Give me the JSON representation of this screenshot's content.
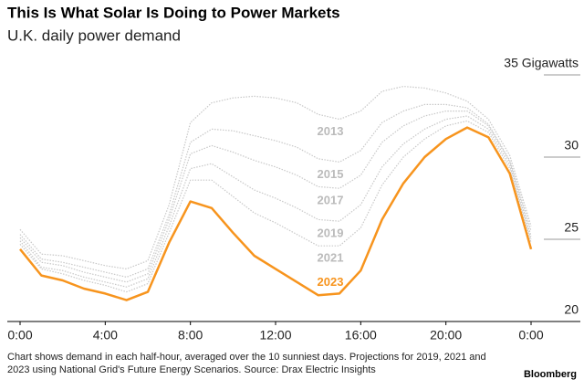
{
  "chart_data": {
    "type": "line",
    "title": "This Is What Solar Is Doing to Power Markets",
    "subtitle": "U.K. daily power demand",
    "note": "Chart shows demand in each half-hour, averaged over the 10 sunniest days. Projections for 2019, 2021 and 2023 using National Grid's Future Energy Scenarios. Source: Drax Electric Insights",
    "source": "Bloomberg",
    "x": [
      0,
      1,
      2,
      3,
      4,
      5,
      6,
      7,
      8,
      9,
      10,
      11,
      12,
      13,
      14,
      15,
      16,
      17,
      18,
      19,
      20,
      21,
      22,
      23,
      24
    ],
    "xlim": [
      0,
      24
    ],
    "xticks": [
      {
        "value": 0,
        "label": "0:00"
      },
      {
        "value": 4,
        "label": "4:00"
      },
      {
        "value": 8,
        "label": "8:00"
      },
      {
        "value": 12,
        "label": "12:00"
      },
      {
        "value": 16,
        "label": "16:00"
      },
      {
        "value": 20,
        "label": "20:00"
      },
      {
        "value": 24,
        "label": "0:00"
      }
    ],
    "ylim": [
      20,
      35
    ],
    "yticks": [
      20,
      25,
      30,
      {
        "value": 35,
        "label": "35 Gigawatts"
      }
    ],
    "series": [
      {
        "name": "2013",
        "color": "#c8c8c8",
        "values": [
          25.6,
          24.1,
          24.0,
          23.7,
          23.4,
          23.2,
          23.7,
          27.1,
          32.1,
          33.3,
          33.6,
          33.7,
          33.6,
          33.3,
          32.6,
          32.3,
          32.8,
          34.0,
          34.3,
          34.2,
          33.9,
          33.4,
          32.3,
          30.1,
          25.8
        ]
      },
      {
        "name": "2015",
        "color": "#c8c8c8",
        "values": [
          25.3,
          23.8,
          23.6,
          23.3,
          23.0,
          22.7,
          23.2,
          26.5,
          30.9,
          31.7,
          31.6,
          31.3,
          31.0,
          30.6,
          29.9,
          29.7,
          30.4,
          32.1,
          32.8,
          33.2,
          33.2,
          33.0,
          32.0,
          29.8,
          25.5
        ]
      },
      {
        "name": "2017",
        "color": "#c8c8c8",
        "values": [
          25.1,
          23.6,
          23.4,
          23.0,
          22.7,
          22.4,
          22.9,
          26.2,
          30.2,
          30.7,
          30.3,
          29.8,
          29.4,
          28.9,
          28.2,
          28.1,
          28.9,
          30.9,
          31.9,
          32.5,
          32.8,
          32.8,
          31.9,
          29.7,
          25.2
        ]
      },
      {
        "name": "2019",
        "color": "#c8c8c8",
        "values": [
          24.9,
          23.3,
          23.1,
          22.7,
          22.4,
          22.1,
          22.6,
          25.8,
          29.3,
          29.6,
          28.8,
          28.0,
          27.5,
          26.9,
          26.2,
          26.1,
          27.1,
          29.4,
          30.8,
          31.7,
          32.3,
          32.5,
          31.7,
          29.5,
          25.0
        ]
      },
      {
        "name": "2021",
        "color": "#c8c8c8",
        "values": [
          24.7,
          23.2,
          22.9,
          22.5,
          22.2,
          21.8,
          22.3,
          25.4,
          28.6,
          28.6,
          27.6,
          26.6,
          26.0,
          25.3,
          24.6,
          24.6,
          25.7,
          28.3,
          30.0,
          31.1,
          31.9,
          32.2,
          31.5,
          29.3,
          24.8
        ]
      },
      {
        "name": "2023",
        "color": "#f7941d",
        "values": [
          24.4,
          22.8,
          22.5,
          22.0,
          21.7,
          21.3,
          21.8,
          24.8,
          27.3,
          26.9,
          25.4,
          24.0,
          23.2,
          22.4,
          21.6,
          21.7,
          23.1,
          26.2,
          28.4,
          30.0,
          31.1,
          31.8,
          31.2,
          29.0,
          24.4
        ]
      }
    ]
  }
}
